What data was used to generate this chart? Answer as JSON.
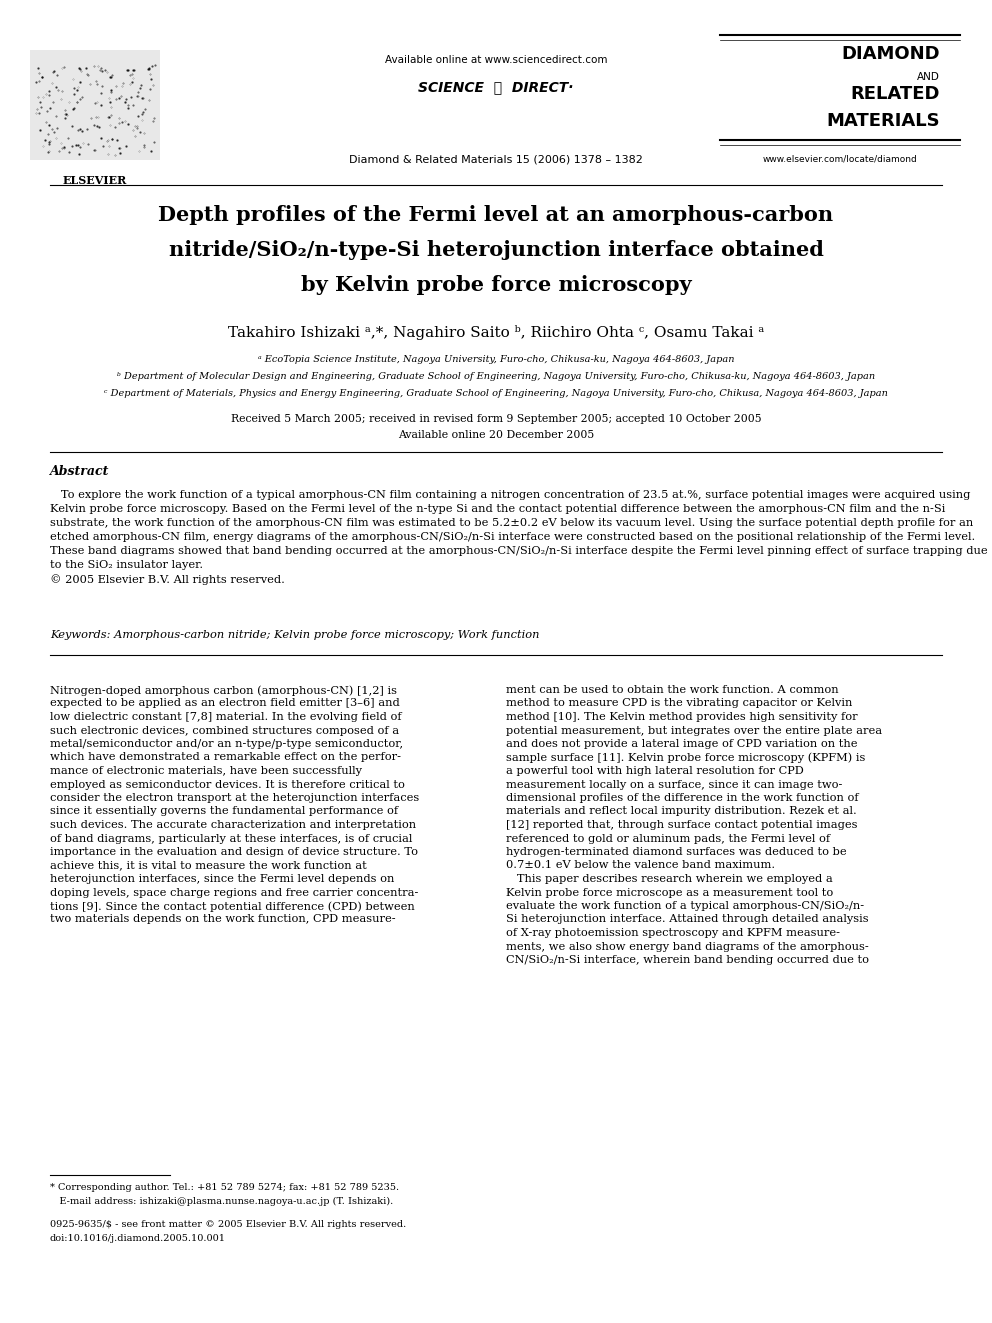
{
  "page_width": 9.92,
  "page_height": 13.23,
  "bg_color": "#ffffff",
  "available_online": "Available online at www.sciencedirect.com",
  "sciencedirect": "SCIENCE  ⓓ  DIRECT·",
  "journal_line": "Diamond & Related Materials 15 (2006) 1378 – 1382",
  "journal_website": "www.elsevier.com/locate/diamond",
  "elsevier_text": "ELSEVIER",
  "diamond_line1": "DIAMOND",
  "diamond_line2": "AND",
  "diamond_line3": "RELATED",
  "diamond_line4": "MATERIALS",
  "title_line1": "Depth profiles of the Fermi level at an amorphous-carbon",
  "title_line2": "nitride/SiO₂/n-type-Si heterojunction interface obtained",
  "title_line3": "by Kelvin probe force microscopy",
  "authors": "Takahiro Ishizaki ᵃ,*, Nagahiro Saito ᵇ, Riichiro Ohta ᶜ, Osamu Takai ᵃ",
  "aff_a": "ᵃ EcoTopia Science Institute, Nagoya University, Furo-cho, Chikusa-ku, Nagoya 464-8603, Japan",
  "aff_b": "ᵇ Department of Molecular Design and Engineering, Graduate School of Engineering, Nagoya University, Furo-cho, Chikusa-ku, Nagoya 464-8603, Japan",
  "aff_c": "ᶜ Department of Materials, Physics and Energy Engineering, Graduate School of Engineering, Nagoya University, Furo-cho, Chikusa, Nagoya 464-8603, Japan",
  "received_line1": "Received 5 March 2005; received in revised form 9 September 2005; accepted 10 October 2005",
  "received_line2": "Available online 20 December 2005",
  "abstract_title": "Abstract",
  "abstract_indent": "   To explore the work function of a typical amorphous-CN film containing a nitrogen concentration of 23.5 at.%, surface potential images were acquired using Kelvin probe force microscopy. Based on the Fermi level of the n-type Si and the contact potential difference between the amorphous-CN film and the n-Si substrate, the work function of the amorphous-CN film was estimated to be 5.2±0.2 eV below its vacuum level. Using the surface potential depth profile for an etched amorphous-CN film, energy diagrams of the amorphous-CN/SiO₂/n-Si interface were constructed based on the positional relationship of the Fermi level. These band diagrams showed that band bending occurred at the amorphous-CN/SiO₂/n-Si interface despite the Fermi level pinning effect of surface trapping due to the SiO₂ insulator layer.\n© 2005 Elsevier B.V. All rights reserved.",
  "keywords": "Keywords: Amorphous-carbon nitride; Kelvin probe force microscopy; Work function",
  "body_col1_lines": [
    "Nitrogen-doped amorphous carbon (amorphous-CN) [1,2] is",
    "expected to be applied as an electron field emitter [3–6] and",
    "low dielectric constant [7,8] material. In the evolving field of",
    "such electronic devices, combined structures composed of a",
    "metal/semiconductor and/or an n-type/p-type semiconductor,",
    "which have demonstrated a remarkable effect on the perfor-",
    "mance of electronic materials, have been successfully",
    "employed as semiconductor devices. It is therefore critical to",
    "consider the electron transport at the heterojunction interfaces",
    "since it essentially governs the fundamental performance of",
    "such devices. The accurate characterization and interpretation",
    "of band diagrams, particularly at these interfaces, is of crucial",
    "importance in the evaluation and design of device structure. To",
    "achieve this, it is vital to measure the work function at",
    "heterojunction interfaces, since the Fermi level depends on",
    "doping levels, space charge regions and free carrier concentra-",
    "tions [9]. Since the contact potential difference (CPD) between",
    "two materials depends on the work function, CPD measure-"
  ],
  "body_col2_lines": [
    "ment can be used to obtain the work function. A common",
    "method to measure CPD is the vibrating capacitor or Kelvin",
    "method [10]. The Kelvin method provides high sensitivity for",
    "potential measurement, but integrates over the entire plate area",
    "and does not provide a lateral image of CPD variation on the",
    "sample surface [11]. Kelvin probe force microscopy (KPFM) is",
    "a powerful tool with high lateral resolution for CPD",
    "measurement locally on a surface, since it can image two-",
    "dimensional profiles of the difference in the work function of",
    "materials and reflect local impurity distribution. Rezek et al.",
    "[12] reported that, through surface contact potential images",
    "referenced to gold or aluminum pads, the Fermi level of",
    "hydrogen-terminated diamond surfaces was deduced to be",
    "0.7±0.1 eV below the valence band maximum.",
    "   This paper describes research wherein we employed a",
    "Kelvin probe force microscope as a measurement tool to",
    "evaluate the work function of a typical amorphous-CN/SiO₂/n-",
    "Si heterojunction interface. Attained through detailed analysis",
    "of X-ray photoemission spectroscopy and KPFM measure-",
    "ments, we also show energy band diagrams of the amorphous-",
    "CN/SiO₂/n-Si interface, wherein band bending occurred due to"
  ],
  "footnote_sep_line": true,
  "footnote_star": "* Corresponding author. Tel.: +81 52 789 5274; fax: +81 52 789 5235.",
  "footnote_email": "   E-mail address: ishizaki@plasma.nunse.nagoya-u.ac.jp (T. Ishizaki).",
  "issn_line": "0925-9635/$ - see front matter © 2005 Elsevier B.V. All rights reserved.",
  "doi_line": "doi:10.1016/j.diamond.2005.10.001"
}
